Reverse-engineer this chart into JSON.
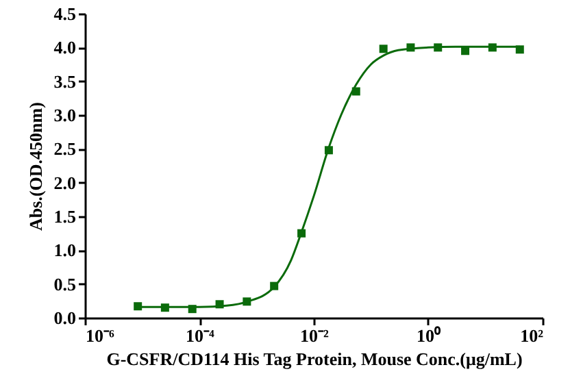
{
  "chart_data": {
    "type": "scatter",
    "xlabel": "G-CSFR/CD114 His Tag Protein, Mouse Conc.(μg/mL)",
    "ylabel": "Abs.(OD.450nm)",
    "log": "x",
    "marker": "square",
    "grid": false,
    "xlim": [
      1e-06,
      100
    ],
    "ylim": [
      0,
      4.5
    ],
    "xticks": [
      {
        "value": 1e-06,
        "label": "10⁻⁶"
      },
      {
        "value": 0.0001,
        "label": "10⁻⁴"
      },
      {
        "value": 0.01,
        "label": "10⁻²"
      },
      {
        "value": 1,
        "label": "10⁰"
      },
      {
        "value": 100,
        "label": "10²"
      }
    ],
    "yticks": [
      {
        "value": 0,
        "label": "0.0"
      },
      {
        "value": 0.5,
        "label": "0.5"
      },
      {
        "value": 1,
        "label": "1.0"
      },
      {
        "value": 1.5,
        "label": "1.5"
      },
      {
        "value": 2,
        "label": "2.0"
      },
      {
        "value": 2.5,
        "label": "2.5"
      },
      {
        "value": 3,
        "label": "3.0"
      },
      {
        "value": 3.5,
        "label": "3.5"
      },
      {
        "value": 4,
        "label": "4.0"
      },
      {
        "value": 4.5,
        "label": "4.5"
      }
    ],
    "series": [
      {
        "type": "line",
        "line_style": "solid",
        "marker": "none",
        "color": "#0b6b0b",
        "x": [
          8e-06,
          3e-05,
          0.0001,
          0.0003,
          0.0007,
          0.002,
          0.004,
          0.006,
          0.01,
          0.018,
          0.03,
          0.055,
          0.1,
          0.165,
          0.3,
          1,
          3,
          10,
          40
        ],
        "values": [
          0.16,
          0.16,
          0.16,
          0.18,
          0.24,
          0.45,
          0.85,
          1.25,
          1.8,
          2.5,
          3.0,
          3.45,
          3.75,
          3.88,
          3.96,
          4.0,
          4.01,
          4.01,
          4.01
        ]
      },
      {
        "type": "scatter",
        "color": "#0b6b0b",
        "x": [
          8.4e-06,
          2.51e-05,
          7.53e-05,
          0.000226,
          0.000677,
          0.00203,
          0.0061,
          0.0183,
          0.0549,
          0.165,
          0.494,
          1.48,
          4.44,
          13.3,
          40
        ],
        "values": [
          0.17,
          0.15,
          0.13,
          0.2,
          0.24,
          0.47,
          1.25,
          2.48,
          3.35,
          3.98,
          4.0,
          4.0,
          3.95,
          4.0,
          3.97
        ]
      }
    ]
  }
}
